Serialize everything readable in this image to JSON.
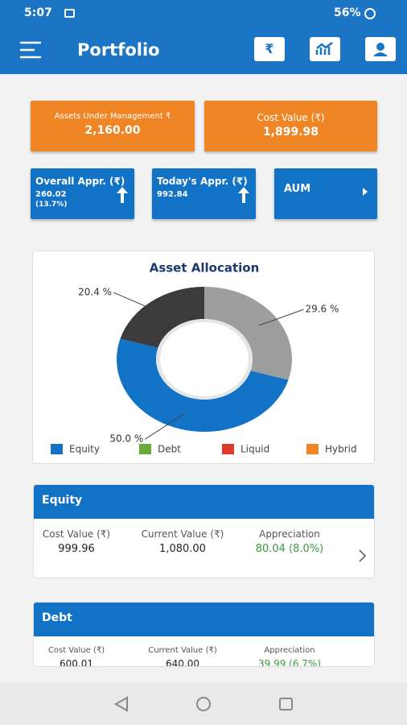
{
  "status_bar": {
    "time": "5:07",
    "battery": "56%"
  },
  "app_bar": {
    "title": "Portfolio"
  },
  "summary": [
    {
      "label": "Assets Under Management ₹",
      "value": "2,160.00"
    },
    {
      "label": "Cost Value (₹)",
      "value": "1,899.98"
    }
  ],
  "appreciation": [
    {
      "label": "Overall Appr. (₹)",
      "value": "260.02",
      "sub": "(13.7%)"
    },
    {
      "label": "Today's Appr. (₹)",
      "value": "992.84"
    }
  ],
  "aum_button": {
    "label": "AUM"
  },
  "chart_data": {
    "type": "pie",
    "donut": true,
    "title": "Asset Allocation",
    "values": [
      29.6,
      50.0,
      20.4
    ],
    "value_labels": [
      "29.6 %",
      "50.0 %",
      "20.4 %"
    ],
    "colors": [
      "#9e9e9e",
      "#1172c6",
      "#3b3b3b"
    ],
    "legend": [
      {
        "name": "Equity",
        "color": "#1172c6"
      },
      {
        "name": "Debt",
        "color": "#6aaa3a"
      },
      {
        "name": "Liquid",
        "color": "#e03a2f"
      },
      {
        "name": "Hybrid",
        "color": "#f08526"
      }
    ]
  },
  "sections": [
    {
      "title": "Equity",
      "columns": [
        {
          "label": "Cost Value (₹)",
          "value": "999.96"
        },
        {
          "label": "Current Value (₹)",
          "value": "1,080.00"
        },
        {
          "label": "Appreciation",
          "value": "80.04 (8.0%)"
        }
      ]
    },
    {
      "title": "Debt",
      "columns": [
        {
          "label": "Cost Value (₹)",
          "value": "600.01"
        },
        {
          "label": "Current Value (₹)",
          "value": "640.00"
        },
        {
          "label": "Appreciation",
          "value": "39.99 (6.7%)"
        }
      ]
    }
  ]
}
